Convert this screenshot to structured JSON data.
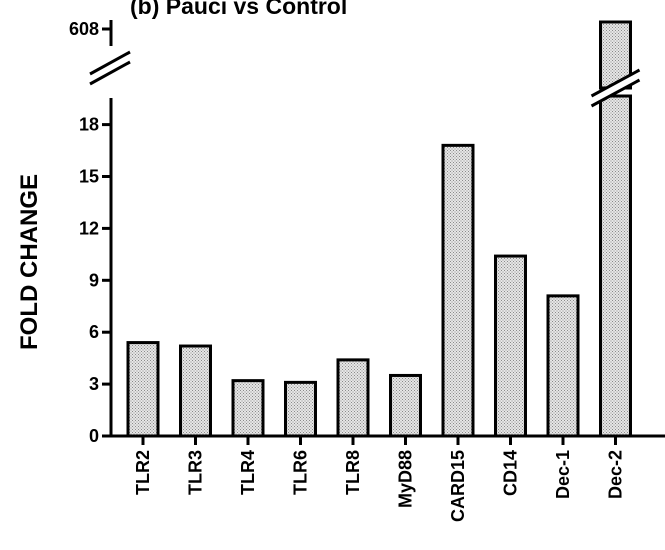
{
  "chart_data": {
    "type": "bar",
    "title": "(b) Pauci vs Control",
    "ylabel": "FOLD CHANGE",
    "xlabel": "",
    "categories": [
      "TLR2",
      "TLR3",
      "TLR4",
      "TLR6",
      "TLR8",
      "MyD88",
      "CARD15",
      "CD14",
      "Dec-1",
      "Dec-2"
    ],
    "values": [
      5.4,
      5.2,
      3.2,
      3.1,
      4.4,
      3.5,
      16.8,
      10.4,
      8.1,
      608
    ],
    "yticks": [
      "0",
      "3",
      "6",
      "9",
      "12",
      "15",
      "18",
      "608"
    ],
    "ylim": [
      0,
      20
    ],
    "axis_break": {
      "upper_tick": 608
    },
    "bar_fill": "#d4d4d4",
    "bar_stroke": "#000000",
    "grid": false,
    "legend": "none"
  }
}
